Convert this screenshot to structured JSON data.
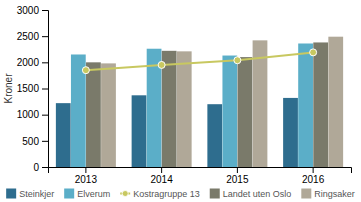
{
  "chart_data": {
    "type": "bar",
    "categories": [
      "2013",
      "2014",
      "2015",
      "2016"
    ],
    "series": [
      {
        "name": "Steinkjer",
        "type": "bar",
        "color": "#2e6d8e",
        "values": [
          1220,
          1370,
          1200,
          1320
        ]
      },
      {
        "name": "Elverum",
        "type": "bar",
        "color": "#5baec8",
        "values": [
          2150,
          2260,
          2130,
          2360
        ]
      },
      {
        "name": "Kostragruppe 13",
        "type": "line",
        "color": "#c8c860",
        "marker": "circle",
        "line_style": "solid",
        "values": [
          1850,
          1950,
          2040,
          2190
        ]
      },
      {
        "name": "Landet uten Oslo",
        "type": "bar",
        "color": "#7a7a6a",
        "values": [
          2000,
          2220,
          2100,
          2380
        ]
      },
      {
        "name": "Ringsaker",
        "type": "bar",
        "color": "#b0a898",
        "values": [
          1980,
          2210,
          2420,
          2490
        ]
      }
    ],
    "ylabel": "Kroner",
    "ylim": [
      0,
      3000
    ],
    "yticks": [
      0,
      500,
      1000,
      1500,
      2000,
      2500,
      3000
    ],
    "grid": false,
    "legend": "bottom"
  }
}
